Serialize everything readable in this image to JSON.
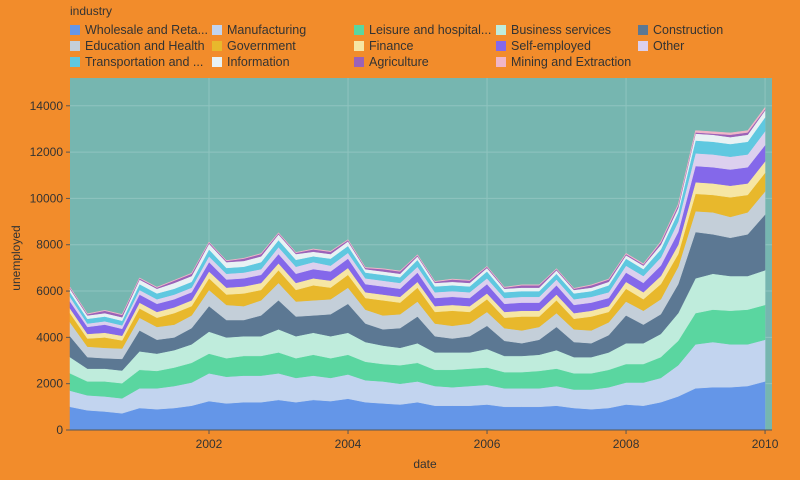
{
  "chart_data": {
    "type": "area",
    "stacked": true,
    "title": "",
    "xlabel": "date",
    "ylabel": "unemployed",
    "legend_title": "industry",
    "legend_placement": "top",
    "background": "#f28c2b",
    "plot_background": "#76b6b0",
    "x_ticks": [
      "2002",
      "2004",
      "2006",
      "2008",
      "2010"
    ],
    "y_ticks": [
      "0",
      "2000",
      "4000",
      "6000",
      "8000",
      "10000",
      "12000",
      "14000"
    ],
    "ylim": [
      0,
      15200
    ],
    "dates": [
      "2000-01",
      "2000-04",
      "2000-07",
      "2000-10",
      "2001-01",
      "2001-04",
      "2001-07",
      "2001-10",
      "2002-01",
      "2002-04",
      "2002-07",
      "2002-10",
      "2003-01",
      "2003-04",
      "2003-07",
      "2003-10",
      "2004-01",
      "2004-04",
      "2004-07",
      "2004-10",
      "2005-01",
      "2005-04",
      "2005-07",
      "2005-10",
      "2006-01",
      "2006-04",
      "2006-07",
      "2006-10",
      "2007-01",
      "2007-04",
      "2007-07",
      "2007-10",
      "2008-01",
      "2008-04",
      "2008-07",
      "2008-10",
      "2009-01",
      "2009-04",
      "2009-07",
      "2009-10",
      "2010-01"
    ],
    "series": [
      {
        "name": "Wholesale and Reta...",
        "color": "#6496e8",
        "values": [
          1000,
          850,
          800,
          720,
          950,
          900,
          950,
          1050,
          1250,
          1150,
          1200,
          1200,
          1300,
          1200,
          1300,
          1250,
          1350,
          1200,
          1150,
          1100,
          1200,
          1050,
          1050,
          1050,
          1100,
          1000,
          1000,
          1000,
          1050,
          950,
          900,
          950,
          1100,
          1050,
          1200,
          1450,
          1800,
          1850,
          1850,
          1900,
          2100
        ]
      },
      {
        "name": "Manufacturing",
        "color": "#c2d4ef",
        "values": [
          700,
          650,
          650,
          650,
          850,
          900,
          950,
          1000,
          1200,
          1150,
          1150,
          1150,
          1150,
          1050,
          1050,
          1000,
          1050,
          950,
          950,
          900,
          900,
          850,
          800,
          850,
          850,
          800,
          800,
          800,
          850,
          800,
          850,
          900,
          950,
          1000,
          1050,
          1350,
          1900,
          1950,
          1850,
          1800,
          1800
        ]
      },
      {
        "name": "Leisure and hospital...",
        "color": "#5ad6a0",
        "values": [
          750,
          600,
          650,
          650,
          800,
          750,
          800,
          850,
          850,
          800,
          850,
          850,
          900,
          850,
          900,
          850,
          850,
          800,
          750,
          800,
          800,
          700,
          750,
          750,
          750,
          700,
          700,
          750,
          750,
          700,
          700,
          750,
          800,
          800,
          900,
          1050,
          1350,
          1400,
          1450,
          1500,
          1500
        ]
      },
      {
        "name": "Business services",
        "color": "#bfecdc",
        "values": [
          700,
          550,
          550,
          550,
          800,
          750,
          750,
          800,
          950,
          900,
          850,
          850,
          1000,
          950,
          950,
          950,
          950,
          850,
          800,
          750,
          850,
          750,
          750,
          700,
          800,
          700,
          700,
          700,
          800,
          700,
          700,
          750,
          900,
          900,
          1000,
          1200,
          1500,
          1550,
          1500,
          1450,
          1500
        ]
      },
      {
        "name": "Construction",
        "color": "#5c7893",
        "values": [
          900,
          500,
          450,
          500,
          900,
          600,
          550,
          700,
          1100,
          750,
          700,
          900,
          1250,
          850,
          750,
          950,
          1250,
          800,
          700,
          850,
          1150,
          700,
          600,
          700,
          1000,
          650,
          550,
          650,
          1000,
          650,
          600,
          750,
          1200,
          800,
          850,
          1250,
          2000,
          1700,
          1650,
          1800,
          2400
        ]
      },
      {
        "name": "Education and Health",
        "color": "#c4cfd9",
        "values": [
          600,
          450,
          450,
          450,
          550,
          550,
          550,
          550,
          700,
          650,
          600,
          650,
          750,
          650,
          650,
          650,
          700,
          600,
          600,
          600,
          650,
          550,
          550,
          550,
          600,
          550,
          550,
          550,
          600,
          550,
          550,
          550,
          600,
          600,
          650,
          750,
          900,
          950,
          900,
          950,
          1000
        ]
      },
      {
        "name": "Government",
        "color": "#e8b82c",
        "values": [
          400,
          350,
          450,
          350,
          400,
          400,
          500,
          400,
          500,
          450,
          550,
          450,
          550,
          500,
          650,
          500,
          550,
          500,
          650,
          500,
          600,
          500,
          650,
          500,
          550,
          450,
          600,
          450,
          550,
          450,
          600,
          450,
          550,
          500,
          650,
          550,
          750,
          750,
          850,
          750,
          800
        ]
      },
      {
        "name": "Finance",
        "color": "#f6e6a4",
        "values": [
          200,
          200,
          200,
          200,
          250,
          250,
          250,
          250,
          300,
          300,
          300,
          300,
          300,
          300,
          300,
          300,
          300,
          250,
          250,
          250,
          250,
          250,
          250,
          250,
          250,
          250,
          250,
          250,
          250,
          250,
          250,
          250,
          300,
          300,
          350,
          400,
          500,
          500,
          500,
          500,
          500
        ]
      },
      {
        "name": "Self-employed",
        "color": "#8468ea",
        "values": [
          300,
          300,
          350,
          300,
          350,
          350,
          350,
          350,
          400,
          350,
          350,
          350,
          400,
          400,
          400,
          400,
          400,
          350,
          350,
          350,
          400,
          350,
          350,
          350,
          400,
          350,
          350,
          350,
          400,
          350,
          350,
          350,
          400,
          400,
          450,
          550,
          700,
          700,
          700,
          700,
          700
        ]
      },
      {
        "name": "Other",
        "color": "#dcd0ee",
        "values": [
          200,
          150,
          150,
          150,
          200,
          200,
          200,
          200,
          250,
          250,
          250,
          250,
          300,
          300,
          300,
          250,
          250,
          250,
          250,
          250,
          250,
          250,
          250,
          250,
          250,
          250,
          250,
          250,
          250,
          250,
          250,
          250,
          300,
          300,
          350,
          450,
          550,
          550,
          550,
          550,
          600
        ]
      },
      {
        "name": "Transportation and ...",
        "color": "#5fc8e0",
        "values": [
          200,
          200,
          200,
          200,
          250,
          250,
          250,
          250,
          300,
          250,
          250,
          300,
          300,
          300,
          250,
          300,
          300,
          250,
          250,
          250,
          300,
          250,
          250,
          250,
          300,
          250,
          250,
          250,
          250,
          250,
          250,
          300,
          300,
          300,
          350,
          400,
          550,
          550,
          550,
          550,
          600
        ]
      },
      {
        "name": "Information",
        "color": "#e8f2f4",
        "values": [
          150,
          150,
          150,
          150,
          200,
          200,
          250,
          250,
          250,
          250,
          250,
          250,
          250,
          250,
          200,
          200,
          200,
          150,
          150,
          150,
          150,
          150,
          150,
          150,
          150,
          150,
          150,
          150,
          150,
          150,
          150,
          150,
          150,
          150,
          200,
          200,
          300,
          300,
          300,
          300,
          300
        ]
      },
      {
        "name": "Agriculture",
        "color": "#9b62b8",
        "values": [
          50,
          50,
          100,
          100,
          50,
          50,
          100,
          100,
          50,
          50,
          100,
          100,
          50,
          50,
          100,
          100,
          50,
          50,
          100,
          100,
          50,
          50,
          100,
          100,
          50,
          50,
          100,
          100,
          50,
          50,
          100,
          100,
          50,
          50,
          100,
          100,
          50,
          50,
          100,
          100,
          50
        ]
      },
      {
        "name": "Mining and Extraction",
        "color": "#f0b6c8",
        "values": [
          20,
          20,
          20,
          20,
          20,
          20,
          20,
          20,
          20,
          20,
          20,
          20,
          20,
          20,
          20,
          20,
          20,
          20,
          20,
          20,
          20,
          20,
          20,
          20,
          20,
          20,
          20,
          20,
          20,
          20,
          20,
          20,
          30,
          30,
          40,
          50,
          80,
          80,
          80,
          80,
          80
        ]
      }
    ]
  }
}
